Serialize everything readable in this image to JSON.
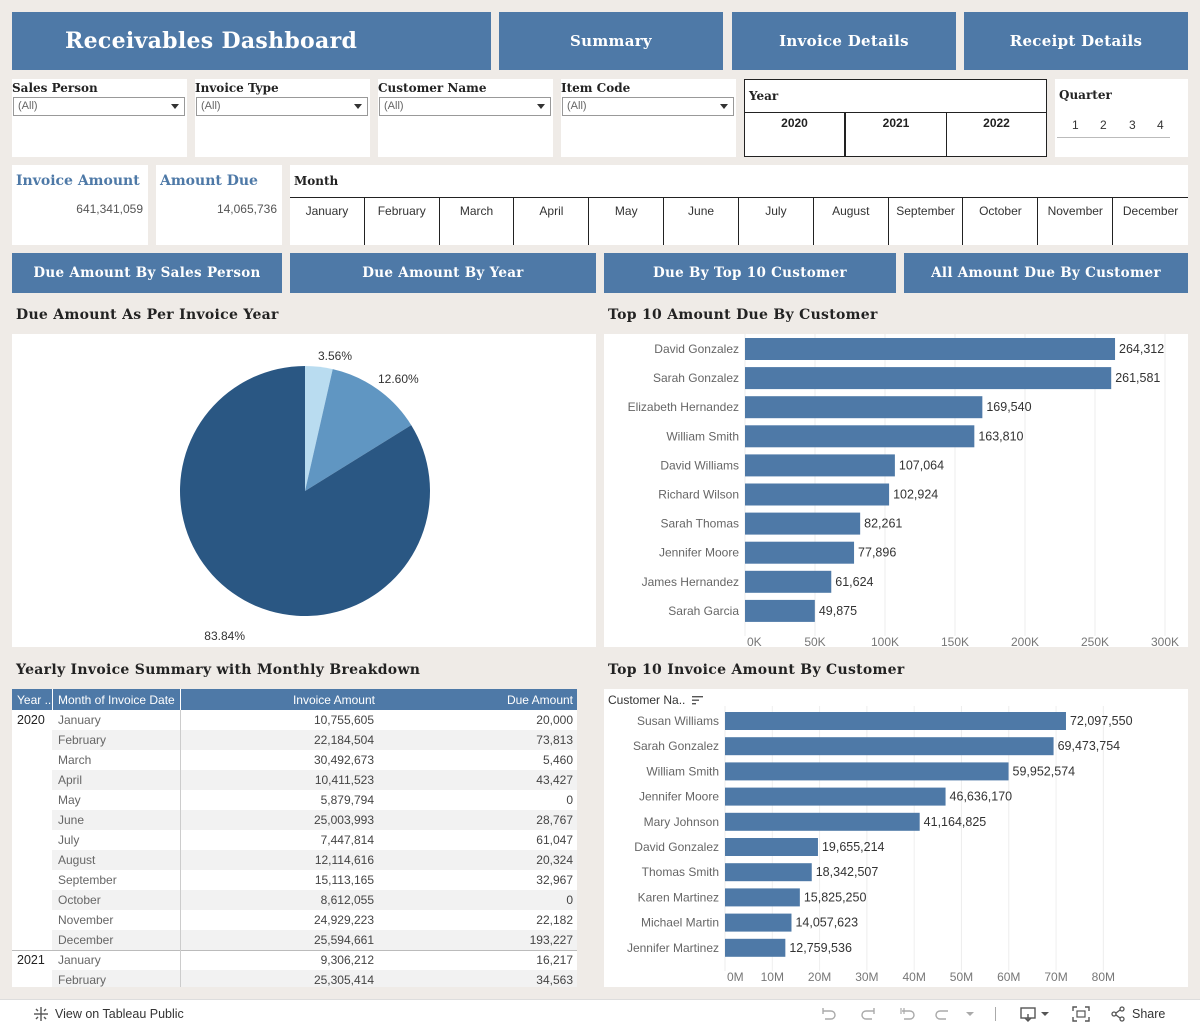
{
  "header": {
    "title": "Receivables Dashboard",
    "nav": [
      "Summary",
      "Invoice Details",
      "Receipt Details"
    ]
  },
  "filters": {
    "sales_person": {
      "label": "Sales Person",
      "value": "(All)"
    },
    "invoice_type": {
      "label": "Invoice Type",
      "value": "(All)"
    },
    "customer_name": {
      "label": "Customer Name",
      "value": "(All)"
    },
    "item_code": {
      "label": "Item Code",
      "value": "(All)"
    },
    "year": {
      "label": "Year",
      "options": [
        "2020",
        "2021",
        "2022"
      ]
    },
    "quarter": {
      "label": "Quarter",
      "options": [
        "1",
        "2",
        "3",
        "4"
      ]
    },
    "month": {
      "label": "Month",
      "options": [
        "January",
        "February",
        "March",
        "April",
        "May",
        "June",
        "July",
        "August",
        "September",
        "October",
        "November",
        "December"
      ]
    }
  },
  "kpis": {
    "invoice_amount": {
      "label": "Invoice Amount",
      "value": "641,341,059"
    },
    "amount_due": {
      "label": "Amount Due",
      "value": "14,065,736"
    }
  },
  "sub_nav": [
    "Due Amount By Sales Person",
    "Due Amount By Year",
    "Due By Top 10 Customer",
    "All Amount Due By Customer"
  ],
  "colors": {
    "accent": "#4e79a7",
    "dark_blue": "#2a5783",
    "mid_blue": "#6096c2",
    "light_blue": "#b9dcf0"
  },
  "chart_data": [
    {
      "type": "pie",
      "title": "Due Amount As Per Invoice Year",
      "labels": [
        "3.56%",
        "12.60%",
        "83.84%"
      ],
      "values": [
        3.56,
        12.6,
        83.84
      ],
      "colors": [
        "#b9dcf0",
        "#6096c2",
        "#2a5783"
      ]
    },
    {
      "type": "bar",
      "orientation": "horizontal",
      "title": "Top 10 Amount Due By Customer",
      "categories": [
        "David Gonzalez",
        "Sarah Gonzalez",
        "Elizabeth Hernandez",
        "William Smith",
        "David Williams",
        "Richard Wilson",
        "Sarah Thomas",
        "Jennifer Moore",
        "James Hernandez",
        "Sarah Garcia"
      ],
      "values": [
        264312,
        261581,
        169540,
        163810,
        107064,
        102924,
        82261,
        77896,
        61624,
        49875
      ],
      "value_labels": [
        "264,312",
        "261,581",
        "169,540",
        "163,810",
        "107,064",
        "102,924",
        "82,261",
        "77,896",
        "61,624",
        "49,875"
      ],
      "xlim": [
        0,
        300000
      ],
      "ticks": [
        0,
        50000,
        100000,
        150000,
        200000,
        250000,
        300000
      ],
      "tick_labels": [
        "0K",
        "50K",
        "100K",
        "150K",
        "200K",
        "250K",
        "300K"
      ]
    },
    {
      "type": "bar",
      "orientation": "horizontal",
      "title": "Top 10 Invoice Amount By Customer",
      "axis_header": "Customer Na..",
      "categories": [
        "Susan Williams",
        "Sarah Gonzalez",
        "William Smith",
        "Jennifer Moore",
        "Mary Johnson",
        "David Gonzalez",
        "Thomas Smith",
        "Karen Martinez",
        "Michael Martin",
        "Jennifer Martinez"
      ],
      "values": [
        72097550,
        69473754,
        59952574,
        46636170,
        41164825,
        19655214,
        18342507,
        15825250,
        14057623,
        12759536
      ],
      "value_labels": [
        "72,097,550",
        "69,473,754",
        "59,952,574",
        "46,636,170",
        "41,164,825",
        "19,655,214",
        "18,342,507",
        "15,825,250",
        "14,057,623",
        "12,759,536"
      ],
      "xlim": [
        0,
        85000000
      ],
      "ticks": [
        0,
        10000000,
        20000000,
        30000000,
        40000000,
        50000000,
        60000000,
        70000000,
        80000000
      ],
      "tick_labels": [
        "0M",
        "10M",
        "20M",
        "30M",
        "40M",
        "50M",
        "60M",
        "70M",
        "80M"
      ]
    }
  ],
  "table": {
    "title": "Yearly Invoice Summary with Monthly Breakdown",
    "headers": [
      "Year ..",
      "Month of Invoice Date",
      "Invoice Amount",
      "Due Amount"
    ],
    "groups": [
      {
        "year": "2020",
        "rows": [
          [
            "January",
            "10,755,605",
            "20,000"
          ],
          [
            "February",
            "22,184,504",
            "73,813"
          ],
          [
            "March",
            "30,492,673",
            "5,460"
          ],
          [
            "April",
            "10,411,523",
            "43,427"
          ],
          [
            "May",
            "5,879,794",
            "0"
          ],
          [
            "June",
            "25,003,993",
            "28,767"
          ],
          [
            "July",
            "7,447,814",
            "61,047"
          ],
          [
            "August",
            "12,114,616",
            "20,324"
          ],
          [
            "September",
            "15,113,165",
            "32,967"
          ],
          [
            "October",
            "8,612,055",
            "0"
          ],
          [
            "November",
            "24,929,223",
            "22,182"
          ],
          [
            "December",
            "25,594,661",
            "193,227"
          ]
        ]
      },
      {
        "year": "2021",
        "rows": [
          [
            "January",
            "9,306,212",
            "16,217"
          ],
          [
            "February",
            "25,305,414",
            "34,563"
          ]
        ]
      }
    ]
  },
  "footer": {
    "view_link": "View on Tableau Public",
    "share": "Share"
  }
}
